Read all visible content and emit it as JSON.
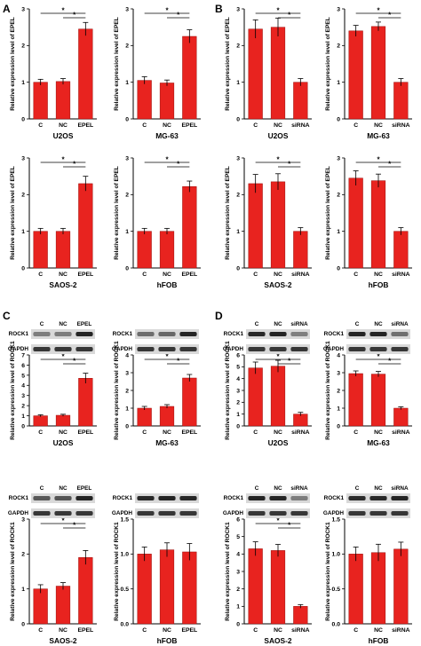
{
  "figure": {
    "panel_letters": [
      "A",
      "B",
      "C",
      "D"
    ],
    "colors": {
      "bar": "#e8231f",
      "bar_edge": "#9a0d0a",
      "axis": "#000000"
    }
  },
  "chart_data": [
    {
      "id": "A1",
      "panel": "A",
      "type": "bar",
      "title": "U2OS",
      "ylabel": "Relative expression level of EPEL",
      "categories": [
        "C",
        "NC",
        "EPEL"
      ],
      "values": [
        1.0,
        1.02,
        2.45
      ],
      "errors": [
        0.08,
        0.08,
        0.18
      ],
      "ylim": [
        0,
        3
      ],
      "yticks": [
        0,
        1,
        2,
        3
      ],
      "significance": [
        {
          "from": 0,
          "to": 2,
          "label": "*"
        },
        {
          "from": 1,
          "to": 2,
          "label": "*"
        }
      ]
    },
    {
      "id": "A2",
      "panel": "A",
      "type": "bar",
      "title": "MG-63",
      "ylabel": "Relative expression level of EPEL",
      "categories": [
        "C",
        "NC",
        "EPEL"
      ],
      "values": [
        1.05,
        0.98,
        2.25
      ],
      "errors": [
        0.1,
        0.08,
        0.18
      ],
      "ylim": [
        0,
        3
      ],
      "yticks": [
        0,
        1,
        2,
        3
      ],
      "significance": [
        {
          "from": 0,
          "to": 2,
          "label": "*"
        },
        {
          "from": 1,
          "to": 2,
          "label": "*"
        }
      ]
    },
    {
      "id": "A3",
      "panel": "A",
      "type": "bar",
      "title": "SAOS-2",
      "ylabel": "Relative expression level of EPEL",
      "categories": [
        "C",
        "NC",
        "EPEL"
      ],
      "values": [
        1.0,
        1.0,
        2.3
      ],
      "errors": [
        0.08,
        0.08,
        0.2
      ],
      "ylim": [
        0,
        3
      ],
      "yticks": [
        0,
        1,
        2,
        3
      ],
      "significance": [
        {
          "from": 0,
          "to": 2,
          "label": "*"
        },
        {
          "from": 1,
          "to": 2,
          "label": "*"
        }
      ]
    },
    {
      "id": "A4",
      "panel": "A",
      "type": "bar",
      "title": "hFOB",
      "ylabel": "Relative expression level of EPEL",
      "categories": [
        "C",
        "NC",
        "EPEL"
      ],
      "values": [
        1.0,
        1.0,
        2.22
      ],
      "errors": [
        0.08,
        0.08,
        0.15
      ],
      "ylim": [
        0,
        3
      ],
      "yticks": [
        0,
        1,
        2,
        3
      ],
      "significance": [
        {
          "from": 0,
          "to": 2,
          "label": "*"
        },
        {
          "from": 1,
          "to": 2,
          "label": "*"
        }
      ]
    },
    {
      "id": "B1",
      "panel": "B",
      "type": "bar",
      "title": "U2OS",
      "ylabel": "Relative expression level of EPEL",
      "categories": [
        "C",
        "NC",
        "siRNA"
      ],
      "values": [
        2.45,
        2.5,
        1.0
      ],
      "errors": [
        0.25,
        0.25,
        0.1
      ],
      "ylim": [
        0,
        3
      ],
      "yticks": [
        0,
        1,
        2,
        3
      ],
      "significance": [
        {
          "from": 0,
          "to": 2,
          "label": "*"
        },
        {
          "from": 1,
          "to": 2,
          "label": "*"
        }
      ]
    },
    {
      "id": "B2",
      "panel": "B",
      "type": "bar",
      "title": "MG-63",
      "ylabel": "Relative expression level of EPEL",
      "categories": [
        "C",
        "NC",
        "siRNA"
      ],
      "values": [
        2.4,
        2.52,
        1.0
      ],
      "errors": [
        0.15,
        0.12,
        0.1
      ],
      "ylim": [
        0,
        3
      ],
      "yticks": [
        0,
        1,
        2,
        3
      ],
      "significance": [
        {
          "from": 0,
          "to": 2,
          "label": "*"
        },
        {
          "from": 1,
          "to": 2,
          "label": "*"
        }
      ]
    },
    {
      "id": "B3",
      "panel": "B",
      "type": "bar",
      "title": "SAOS-2",
      "ylabel": "Relative expression level of EPEL",
      "categories": [
        "C",
        "NC",
        "siRNA"
      ],
      "values": [
        2.3,
        2.35,
        1.0
      ],
      "errors": [
        0.25,
        0.22,
        0.1
      ],
      "ylim": [
        0,
        3
      ],
      "yticks": [
        0,
        1,
        2,
        3
      ],
      "significance": [
        {
          "from": 0,
          "to": 2,
          "label": "*"
        },
        {
          "from": 1,
          "to": 2,
          "label": "*"
        }
      ]
    },
    {
      "id": "B4",
      "panel": "B",
      "type": "bar",
      "title": "hFOB",
      "ylabel": "Relative expression level of EPEL",
      "categories": [
        "C",
        "NC",
        "siRNA"
      ],
      "values": [
        2.45,
        2.38,
        1.0
      ],
      "errors": [
        0.2,
        0.18,
        0.1
      ],
      "ylim": [
        0,
        3
      ],
      "yticks": [
        0,
        1,
        2,
        3
      ],
      "significance": [
        {
          "from": 0,
          "to": 2,
          "label": "*"
        },
        {
          "from": 1,
          "to": 2,
          "label": "*"
        }
      ]
    },
    {
      "id": "C1",
      "panel": "C",
      "type": "bar",
      "title": "U2OS",
      "ylabel": "Relative expression level of ROCK1",
      "categories": [
        "C",
        "NC",
        "EPEL"
      ],
      "values": [
        1.0,
        1.05,
        4.7
      ],
      "errors": [
        0.1,
        0.1,
        0.5
      ],
      "ylim": [
        0,
        7
      ],
      "yticks": [
        0,
        1,
        2,
        3,
        4,
        5,
        6,
        7
      ],
      "significance": [
        {
          "from": 0,
          "to": 2,
          "label": "*"
        },
        {
          "from": 1,
          "to": 2,
          "label": "*"
        }
      ],
      "blot": {
        "rows": [
          "ROCK1",
          "GAPDH"
        ],
        "lanes": [
          "C",
          "NC",
          "EPEL"
        ]
      }
    },
    {
      "id": "C2",
      "panel": "C",
      "type": "bar",
      "title": "MG-63",
      "ylabel": "Relative expression level of ROCK1",
      "categories": [
        "C",
        "NC",
        "EPEL"
      ],
      "values": [
        1.0,
        1.1,
        2.7
      ],
      "errors": [
        0.1,
        0.1,
        0.2
      ],
      "ylim": [
        0,
        4
      ],
      "yticks": [
        0,
        1,
        2,
        3,
        4
      ],
      "significance": [
        {
          "from": 0,
          "to": 2,
          "label": "*"
        },
        {
          "from": 1,
          "to": 2,
          "label": "*"
        }
      ],
      "blot": {
        "rows": [
          "ROCK1",
          "GAPDH"
        ],
        "lanes": []
      }
    },
    {
      "id": "C3",
      "panel": "C",
      "type": "bar",
      "title": "SAOS-2",
      "ylabel": "Relative expression level of ROCK1",
      "categories": [
        "C",
        "NC",
        "EPEL"
      ],
      "values": [
        1.0,
        1.08,
        1.9
      ],
      "errors": [
        0.12,
        0.1,
        0.2
      ],
      "ylim": [
        0,
        3
      ],
      "yticks": [
        0,
        1,
        2,
        3
      ],
      "significance": [
        {
          "from": 0,
          "to": 2,
          "label": "*"
        },
        {
          "from": 1,
          "to": 2,
          "label": "*"
        }
      ],
      "blot": {
        "rows": [
          "ROCK1",
          "GAPDH"
        ],
        "lanes": [
          "C",
          "NC",
          "EPEL"
        ]
      }
    },
    {
      "id": "C4",
      "panel": "C",
      "type": "bar",
      "title": "hFOB",
      "ylabel": "Relative expression level of ROCK1",
      "categories": [
        "C",
        "NC",
        "EPEL"
      ],
      "values": [
        1.0,
        1.06,
        1.03
      ],
      "errors": [
        0.1,
        0.1,
        0.12
      ],
      "ylim": [
        0,
        1.5
      ],
      "yticks": [
        0.0,
        0.5,
        1.0,
        1.5
      ],
      "significance": [],
      "blot": {
        "rows": [
          "ROCK1",
          "GAPDH"
        ],
        "lanes": []
      }
    },
    {
      "id": "D1",
      "panel": "D",
      "type": "bar",
      "title": "U2OS",
      "ylabel": "Relative expression level of ROCK1",
      "categories": [
        "C",
        "NC",
        "siRNA"
      ],
      "values": [
        4.9,
        5.05,
        1.0
      ],
      "errors": [
        0.5,
        0.5,
        0.15
      ],
      "ylim": [
        0,
        6
      ],
      "yticks": [
        0,
        1,
        2,
        3,
        4,
        5,
        6
      ],
      "significance": [
        {
          "from": 0,
          "to": 2,
          "label": "*"
        },
        {
          "from": 1,
          "to": 2,
          "label": "*"
        }
      ],
      "blot": {
        "rows": [
          "ROCK1",
          "GAPDH"
        ],
        "lanes": [
          "C",
          "NC",
          "siRNA"
        ]
      }
    },
    {
      "id": "D2",
      "panel": "D",
      "type": "bar",
      "title": "MG-63",
      "ylabel": "Relative expression level of ROCK1",
      "categories": [
        "C",
        "NC",
        "siRNA"
      ],
      "values": [
        2.95,
        2.92,
        1.0
      ],
      "errors": [
        0.15,
        0.15,
        0.08
      ],
      "ylim": [
        0,
        4
      ],
      "yticks": [
        0,
        1,
        2,
        3,
        4
      ],
      "significance": [
        {
          "from": 0,
          "to": 2,
          "label": "*"
        },
        {
          "from": 1,
          "to": 2,
          "label": "*"
        }
      ],
      "blot": {
        "rows": [
          "ROCK1",
          "GAPDH"
        ],
        "lanes": [
          "C",
          "NC",
          "siRNA"
        ]
      }
    },
    {
      "id": "D3",
      "panel": "D",
      "type": "bar",
      "title": "SAOS-2",
      "ylabel": "Relative expression level of ROCK1",
      "categories": [
        "C",
        "NC",
        "siRNA"
      ],
      "values": [
        4.3,
        4.2,
        1.0
      ],
      "errors": [
        0.4,
        0.35,
        0.1
      ],
      "ylim": [
        0,
        6
      ],
      "yticks": [
        0,
        1,
        2,
        3,
        4,
        5,
        6
      ],
      "significance": [
        {
          "from": 0,
          "to": 2,
          "label": "*"
        },
        {
          "from": 1,
          "to": 2,
          "label": "*"
        }
      ],
      "blot": {
        "rows": [
          "ROCK1",
          "GAPDH"
        ],
        "lanes": [
          "C",
          "NC",
          "siRNA"
        ]
      }
    },
    {
      "id": "D4",
      "panel": "D",
      "type": "bar",
      "title": "hFOB",
      "ylabel": "Relative expression level of ROCK1",
      "categories": [
        "C",
        "NC",
        "siRNA"
      ],
      "values": [
        1.0,
        1.02,
        1.07
      ],
      "errors": [
        0.1,
        0.12,
        0.1
      ],
      "ylim": [
        0,
        1.5
      ],
      "yticks": [
        0.0,
        0.5,
        1.0,
        1.5
      ],
      "significance": [],
      "blot": {
        "rows": [
          "ROCK1",
          "GAPDH"
        ],
        "lanes": [
          "C",
          "NC",
          "siRNA"
        ]
      }
    }
  ]
}
